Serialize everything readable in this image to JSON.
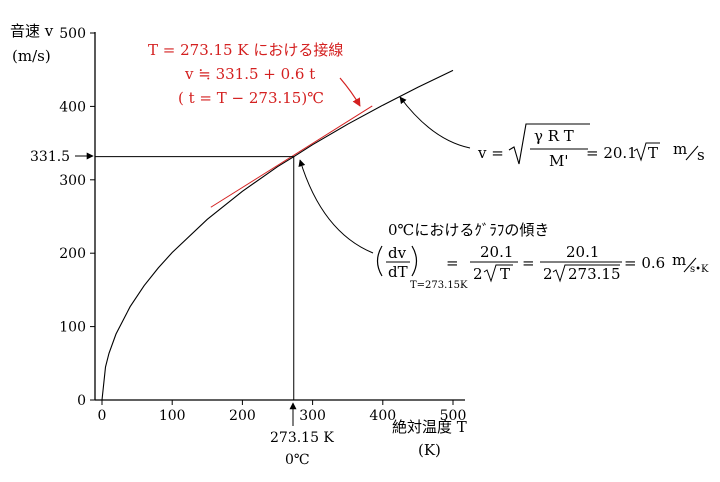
{
  "chart_data": {
    "type": "line",
    "xlabel": "絶対温度 T",
    "xunit": "(K)",
    "ylabel": "音速 v",
    "yunit": "(m/s)",
    "xlim": [
      0,
      500
    ],
    "ylim": [
      0,
      500
    ],
    "x_ticks": [
      0,
      100,
      200,
      300,
      400,
      500
    ],
    "y_ticks": [
      0,
      100,
      200,
      300,
      400,
      500
    ],
    "x_tick_labels": [
      "0",
      "100",
      "200",
      "300",
      "400",
      "500"
    ],
    "y_tick_labels": [
      "0",
      "100",
      "200",
      "300",
      "400",
      "500"
    ],
    "series": [
      {
        "x": [
          0,
          5,
          10,
          20,
          40,
          60,
          80,
          100,
          150,
          200,
          250,
          273.15,
          300,
          350,
          400,
          450,
          500
        ],
        "y": [
          0,
          44.9,
          63.6,
          89.9,
          127.1,
          155.7,
          179.8,
          201.0,
          246.2,
          284.3,
          317.8,
          331.5,
          347.8,
          375.7,
          401.7,
          426.0,
          449.1
        ]
      }
    ],
    "tangent": {
      "x": [
        155,
        385
      ],
      "y": [
        262.6,
        400.6
      ],
      "color": "#d42020"
    },
    "reference_point": {
      "x": 273.15,
      "y": 331.5
    }
  },
  "labels": {
    "y_marker": "331.5",
    "x_marker": "273.15 K",
    "x_marker_celsius": "0℃",
    "tangent_title": "T = 273.15 K における接線",
    "tangent_eq1": "v ≒ 331.5 + 0.6 t",
    "tangent_eq2": "( t = T − 273.15)℃",
    "slope_title": "0℃におけるｸﾞﾗﾌの傾き",
    "curve_v": "v =",
    "curve_gamma_rt": "γ R T",
    "curve_m": "M'",
    "curve_rhs": "= 20.1",
    "curve_sqrt_t": "T",
    "curve_unit_m": "m",
    "curve_unit_s": "s",
    "slope_dv": "dv",
    "slope_dt": "dT",
    "slope_sub": "T=273.15K",
    "slope_eq1": "=",
    "slope_num": "20.1",
    "slope_den1": "2",
    "slope_den1_t": "T",
    "slope_den2": "2",
    "slope_den2_t": "273.15",
    "slope_eq2": "=",
    "slope_result": "= 0.6",
    "slope_unit_m": "m",
    "slope_unit_sk": "s•K"
  },
  "colors": {
    "axis": "#000000",
    "curve": "#000000",
    "tangent": "#d42020",
    "annotation_red": "#d42020"
  }
}
